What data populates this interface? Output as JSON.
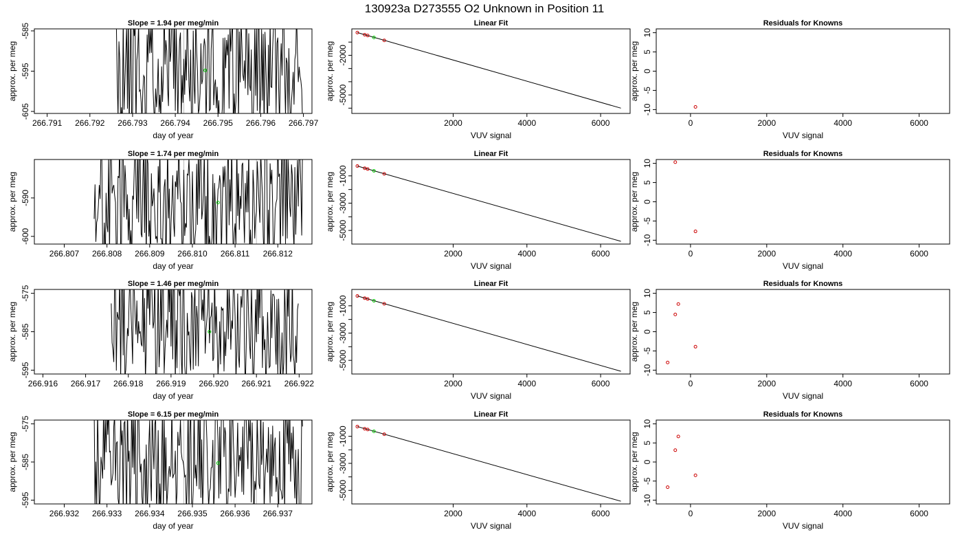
{
  "figure": {
    "title": "130923a     D273555   O2 Unknown in Position  11"
  },
  "colors": {
    "trace": "#000000",
    "green_marker": "#00cc00",
    "known_points": "#cc0000",
    "mark_lines": "#bbbbbb"
  },
  "chart_data": [
    {
      "type": "line",
      "row": 0,
      "col": 0,
      "title": "Slope =  1.94  per meg/min",
      "xlabel": "day of year",
      "ylabel": "approx. per meg",
      "xlim": [
        266.7907,
        266.7972
      ],
      "ylim": [
        -605.5,
        -584.5
      ],
      "xticks": [
        266.791,
        266.792,
        266.793,
        266.794,
        266.795,
        266.796,
        266.797
      ],
      "xtick_labels": [
        "266.791",
        "266.792",
        "266.793",
        "266.794",
        "266.795",
        "266.796",
        "266.797"
      ],
      "yticks": [
        -585,
        -595,
        -605
      ],
      "ytick_labels": [
        "-585",
        "-595",
        "-605"
      ],
      "trace": {
        "start": 266.7926,
        "end": 266.797,
        "seed": 11,
        "step": 2e-05,
        "min": -611,
        "max": -578
      },
      "marker": {
        "x": 266.7947,
        "y": -594.8
      },
      "vlines": [
        266.7942
      ]
    },
    {
      "type": "scatter",
      "row": 0,
      "col": 1,
      "title": "Linear Fit",
      "xlabel": "VUV signal",
      "ylabel": "approx. per meg",
      "xlim": [
        -750,
        6800
      ],
      "ylim": [
        -6400,
        0
      ],
      "xticks": [
        2000,
        4000,
        6000
      ],
      "xtick_labels": [
        "2000",
        "4000",
        "6000"
      ],
      "yticks": [
        -2000,
        -5000
      ],
      "ytick_labels": [
        "-2000",
        "-5000"
      ],
      "minor_yticks": [
        -1000,
        -3000,
        -4000,
        -6000
      ],
      "line": {
        "x": [
          -600,
          6550
        ],
        "y": [
          -280,
          -6000
        ]
      },
      "points": {
        "x": [
          -600,
          -400,
          -320,
          130
        ],
        "y": [
          -280,
          -440,
          -500,
          -870
        ]
      },
      "marker": {
        "x": -150,
        "y": -650
      }
    },
    {
      "type": "scatter",
      "row": 0,
      "col": 2,
      "title": "Residuals for Knowns",
      "xlabel": "VUV signal",
      "ylabel": "approx. per meg",
      "xlim": [
        -900,
        6800
      ],
      "ylim": [
        -11,
        11
      ],
      "xticks": [
        0,
        2000,
        4000,
        6000
      ],
      "xtick_labels": [
        "0",
        "2000",
        "4000",
        "6000"
      ],
      "yticks": [
        10,
        5,
        0,
        -5,
        -10
      ],
      "ytick_labels": [
        "10",
        "5",
        "0",
        "-5",
        "-10"
      ],
      "points": {
        "x": [
          130
        ],
        "y": [
          -9.3
        ]
      }
    },
    {
      "type": "line",
      "row": 1,
      "col": 0,
      "title": "Slope =  1.74  per meg/min",
      "xlabel": "day of year",
      "ylabel": "approx. per meg",
      "xlim": [
        266.8063,
        266.8128
      ],
      "ylim": [
        -602,
        -580
      ],
      "xticks": [
        266.807,
        266.808,
        266.809,
        266.81,
        266.811,
        266.812
      ],
      "xtick_labels": [
        "266.807",
        "266.808",
        "266.809",
        "266.810",
        "266.811",
        "266.812"
      ],
      "yticks": [
        -590,
        -600
      ],
      "ytick_labels": [
        "-590",
        "-600"
      ],
      "trace": {
        "start": 266.8077,
        "end": 266.8126,
        "seed": 23,
        "step": 2e-05,
        "min": -608,
        "max": -574
      },
      "marker": {
        "x": 266.8106,
        "y": -591.2
      },
      "vlines": [
        266.8098,
        266.8115
      ]
    },
    {
      "type": "scatter",
      "row": 1,
      "col": 1,
      "title": "Linear Fit",
      "xlabel": "VUV signal",
      "ylabel": "approx. per meg",
      "xlim": [
        -750,
        6800
      ],
      "ylim": [
        -6000,
        200
      ],
      "xticks": [
        2000,
        4000,
        6000
      ],
      "xtick_labels": [
        "2000",
        "4000",
        "6000"
      ],
      "yticks": [
        -1000,
        -3000,
        -5000
      ],
      "ytick_labels": [
        "-1000",
        "-3000",
        "-5000"
      ],
      "minor_yticks": [
        -2000,
        -4000
      ],
      "line": {
        "x": [
          -600,
          6550
        ],
        "y": [
          -280,
          -5800
        ]
      },
      "points": {
        "x": [
          -600,
          -400,
          -320,
          130
        ],
        "y": [
          -280,
          -440,
          -500,
          -850
        ]
      },
      "marker": {
        "x": -150,
        "y": -630
      }
    },
    {
      "type": "scatter",
      "row": 1,
      "col": 2,
      "title": "Residuals for Knowns",
      "xlabel": "VUV signal",
      "ylabel": "approx. per meg",
      "xlim": [
        -900,
        6800
      ],
      "ylim": [
        -11,
        11
      ],
      "xticks": [
        0,
        2000,
        4000,
        6000
      ],
      "xtick_labels": [
        "0",
        "2000",
        "4000",
        "6000"
      ],
      "yticks": [
        10,
        5,
        0,
        -5,
        -10
      ],
      "ytick_labels": [
        "10",
        "5",
        "0",
        "-5",
        "-10"
      ],
      "points": {
        "x": [
          -400,
          130
        ],
        "y": [
          10.3,
          -7.7
        ]
      }
    },
    {
      "type": "line",
      "row": 2,
      "col": 0,
      "title": "Slope =  1.46  per meg/min",
      "xlabel": "day of year",
      "ylabel": "approx. per meg",
      "xlim": [
        266.9158,
        266.9223
      ],
      "ylim": [
        -596,
        -574
      ],
      "xticks": [
        266.916,
        266.917,
        266.918,
        266.919,
        266.92,
        266.921,
        266.922
      ],
      "xtick_labels": [
        "266.916",
        "266.917",
        "266.918",
        "266.919",
        "266.920",
        "266.921",
        "266.922"
      ],
      "yticks": [
        -575,
        -585,
        -595
      ],
      "ytick_labels": [
        "-575",
        "-585",
        "-595"
      ],
      "trace": {
        "start": 266.9176,
        "end": 266.922,
        "seed": 37,
        "step": 2e-05,
        "min": -600,
        "max": -568
      },
      "marker": {
        "x": 266.9199,
        "y": -585
      },
      "vlines": [
        266.9192,
        266.9209
      ]
    },
    {
      "type": "scatter",
      "row": 2,
      "col": 1,
      "title": "Linear Fit",
      "xlabel": "VUV signal",
      "ylabel": "approx. per meg",
      "xlim": [
        -750,
        6800
      ],
      "ylim": [
        -6000,
        200
      ],
      "xticks": [
        2000,
        4000,
        6000
      ],
      "xtick_labels": [
        "2000",
        "4000",
        "6000"
      ],
      "yticks": [
        -1000,
        -3000,
        -5000
      ],
      "ytick_labels": [
        "-1000",
        "-3000",
        "-5000"
      ],
      "minor_yticks": [
        -2000,
        -4000
      ],
      "line": {
        "x": [
          -600,
          6550
        ],
        "y": [
          -280,
          -5800
        ]
      },
      "points": {
        "x": [
          -600,
          -400,
          -320,
          130
        ],
        "y": [
          -280,
          -440,
          -500,
          -850
        ]
      },
      "marker": {
        "x": -150,
        "y": -630
      }
    },
    {
      "type": "scatter",
      "row": 2,
      "col": 2,
      "title": "Residuals for Knowns",
      "xlabel": "VUV signal",
      "ylabel": "approx. per meg",
      "xlim": [
        -900,
        6800
      ],
      "ylim": [
        -11,
        11
      ],
      "xticks": [
        0,
        2000,
        4000,
        6000
      ],
      "xtick_labels": [
        "0",
        "2000",
        "4000",
        "6000"
      ],
      "yticks": [
        10,
        5,
        0,
        -5,
        -10
      ],
      "ytick_labels": [
        "10",
        "5",
        "0",
        "-5",
        "-10"
      ],
      "points": {
        "x": [
          -600,
          -400,
          -320,
          130
        ],
        "y": [
          -8,
          4.5,
          7.2,
          -3.9
        ]
      }
    },
    {
      "type": "line",
      "row": 3,
      "col": 0,
      "title": "Slope =  6.15  per meg/min",
      "xlabel": "day of year",
      "ylabel": "approx. per meg",
      "xlim": [
        266.9313,
        266.9378
      ],
      "ylim": [
        -596,
        -574
      ],
      "xticks": [
        266.932,
        266.933,
        266.934,
        266.935,
        266.936,
        266.937
      ],
      "xtick_labels": [
        "266.932",
        "266.933",
        "266.934",
        "266.935",
        "266.936",
        "266.937"
      ],
      "yticks": [
        -575,
        -585,
        -595
      ],
      "ytick_labels": [
        "-575",
        "-585",
        "-595"
      ],
      "trace": {
        "start": 266.9327,
        "end": 266.9376,
        "seed": 53,
        "step": 2e-05,
        "min": -600,
        "max": -568
      },
      "marker": {
        "x": 266.9356,
        "y": -585.3
      },
      "vlines": [
        266.9348,
        266.9365
      ]
    },
    {
      "type": "scatter",
      "row": 3,
      "col": 1,
      "title": "Linear Fit",
      "xlabel": "VUV signal",
      "ylabel": "approx. per meg",
      "xlim": [
        -750,
        6800
      ],
      "ylim": [
        -6000,
        200
      ],
      "xticks": [
        2000,
        4000,
        6000
      ],
      "xtick_labels": [
        "2000",
        "4000",
        "6000"
      ],
      "yticks": [
        -1000,
        -3000,
        -5000
      ],
      "ytick_labels": [
        "-1000",
        "-3000",
        "-5000"
      ],
      "minor_yticks": [
        -2000,
        -4000
      ],
      "line": {
        "x": [
          -600,
          6550
        ],
        "y": [
          -280,
          -5800
        ]
      },
      "points": {
        "x": [
          -600,
          -400,
          -320,
          130
        ],
        "y": [
          -280,
          -440,
          -500,
          -850
        ]
      },
      "marker": {
        "x": -150,
        "y": -630
      }
    },
    {
      "type": "scatter",
      "row": 3,
      "col": 2,
      "title": "Residuals for Knowns",
      "xlabel": "VUV signal",
      "ylabel": "approx. per meg",
      "xlim": [
        -900,
        6800
      ],
      "ylim": [
        -11,
        11
      ],
      "xticks": [
        0,
        2000,
        4000,
        6000
      ],
      "xtick_labels": [
        "0",
        "2000",
        "4000",
        "6000"
      ],
      "yticks": [
        10,
        5,
        0,
        -5,
        -10
      ],
      "ytick_labels": [
        "10",
        "5",
        "0",
        "-5",
        "-10"
      ],
      "points": {
        "x": [
          -600,
          -400,
          -320,
          130
        ],
        "y": [
          -6.6,
          3.1,
          6.7,
          -3.5
        ]
      }
    }
  ]
}
